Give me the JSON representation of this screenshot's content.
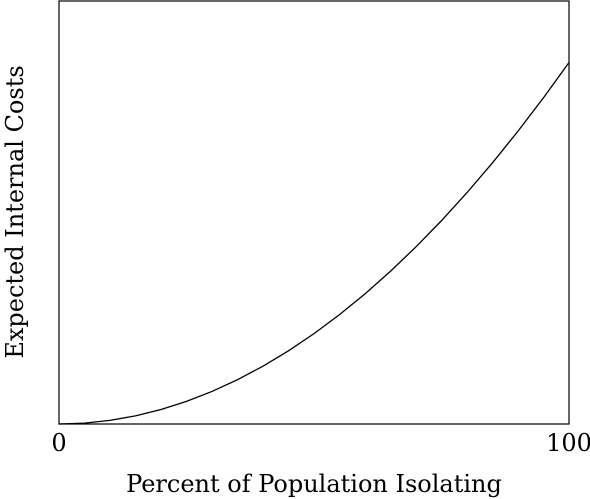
{
  "chart_data": {
    "type": "line",
    "title": "",
    "xlabel": "Percent of Population Isolating",
    "ylabel": "Expected Internal Costs",
    "xlim": [
      0,
      100
    ],
    "ylim": [
      0,
      1.17
    ],
    "x_ticks": [
      {
        "value": 0,
        "label": "0"
      },
      {
        "value": 100,
        "label": "100"
      }
    ],
    "y_ticks": [],
    "grid": false,
    "legend": "none",
    "line_color": "#000000",
    "series": [
      {
        "x": [
          0,
          5,
          10,
          15,
          20,
          25,
          30,
          35,
          40,
          45,
          50,
          55,
          60,
          65,
          70,
          75,
          80,
          85,
          90,
          95,
          100
        ],
        "y": [
          0,
          0.0025,
          0.01,
          0.0225,
          0.04,
          0.0625,
          0.09,
          0.1225,
          0.16,
          0.2025,
          0.25,
          0.3025,
          0.36,
          0.4225,
          0.49,
          0.5625,
          0.64,
          0.7225,
          0.81,
          0.9025,
          1.0
        ]
      }
    ]
  }
}
